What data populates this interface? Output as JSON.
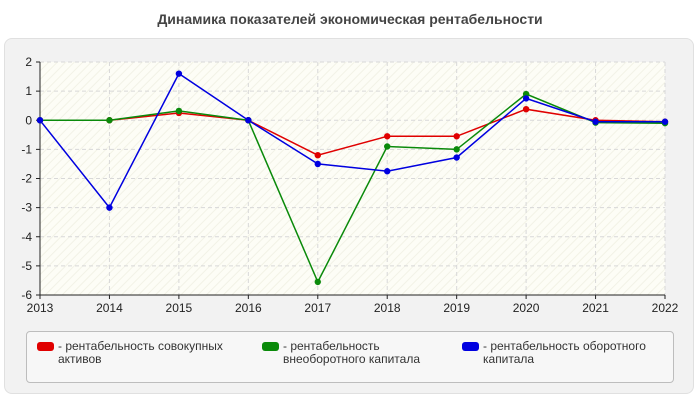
{
  "title": "Динамика показателей экономическая рентабельности",
  "chart_data": {
    "type": "line",
    "title": "Динамика показателей экономическая рентабельности",
    "x": [
      "2013",
      "2014",
      "2015",
      "2016",
      "2017",
      "2018",
      "2019",
      "2020",
      "2021",
      "2022"
    ],
    "ylim": [
      -6,
      2
    ],
    "yticks": [
      2,
      1,
      0,
      -1,
      -2,
      -3,
      -4,
      -5,
      -6
    ],
    "grid": true,
    "legend_position": "bottom",
    "series": [
      {
        "name": "- рентабельность совокупных активов",
        "color": "#e00000",
        "values": [
          0,
          0,
          0.25,
          0,
          -1.2,
          -0.55,
          -0.55,
          0.38,
          0,
          -0.05
        ]
      },
      {
        "name": "- рентабельность внеоборотного капитала",
        "color": "#0a8a0a",
        "values": [
          0,
          0,
          0.32,
          0,
          -5.55,
          -0.9,
          -1.0,
          0.9,
          -0.08,
          -0.1
        ]
      },
      {
        "name": "- рентабельность оборотного капитала",
        "color": "#0000e0",
        "values": [
          0,
          -3.0,
          1.6,
          0,
          -1.5,
          -1.75,
          -1.28,
          0.75,
          -0.05,
          -0.05
        ]
      }
    ]
  }
}
